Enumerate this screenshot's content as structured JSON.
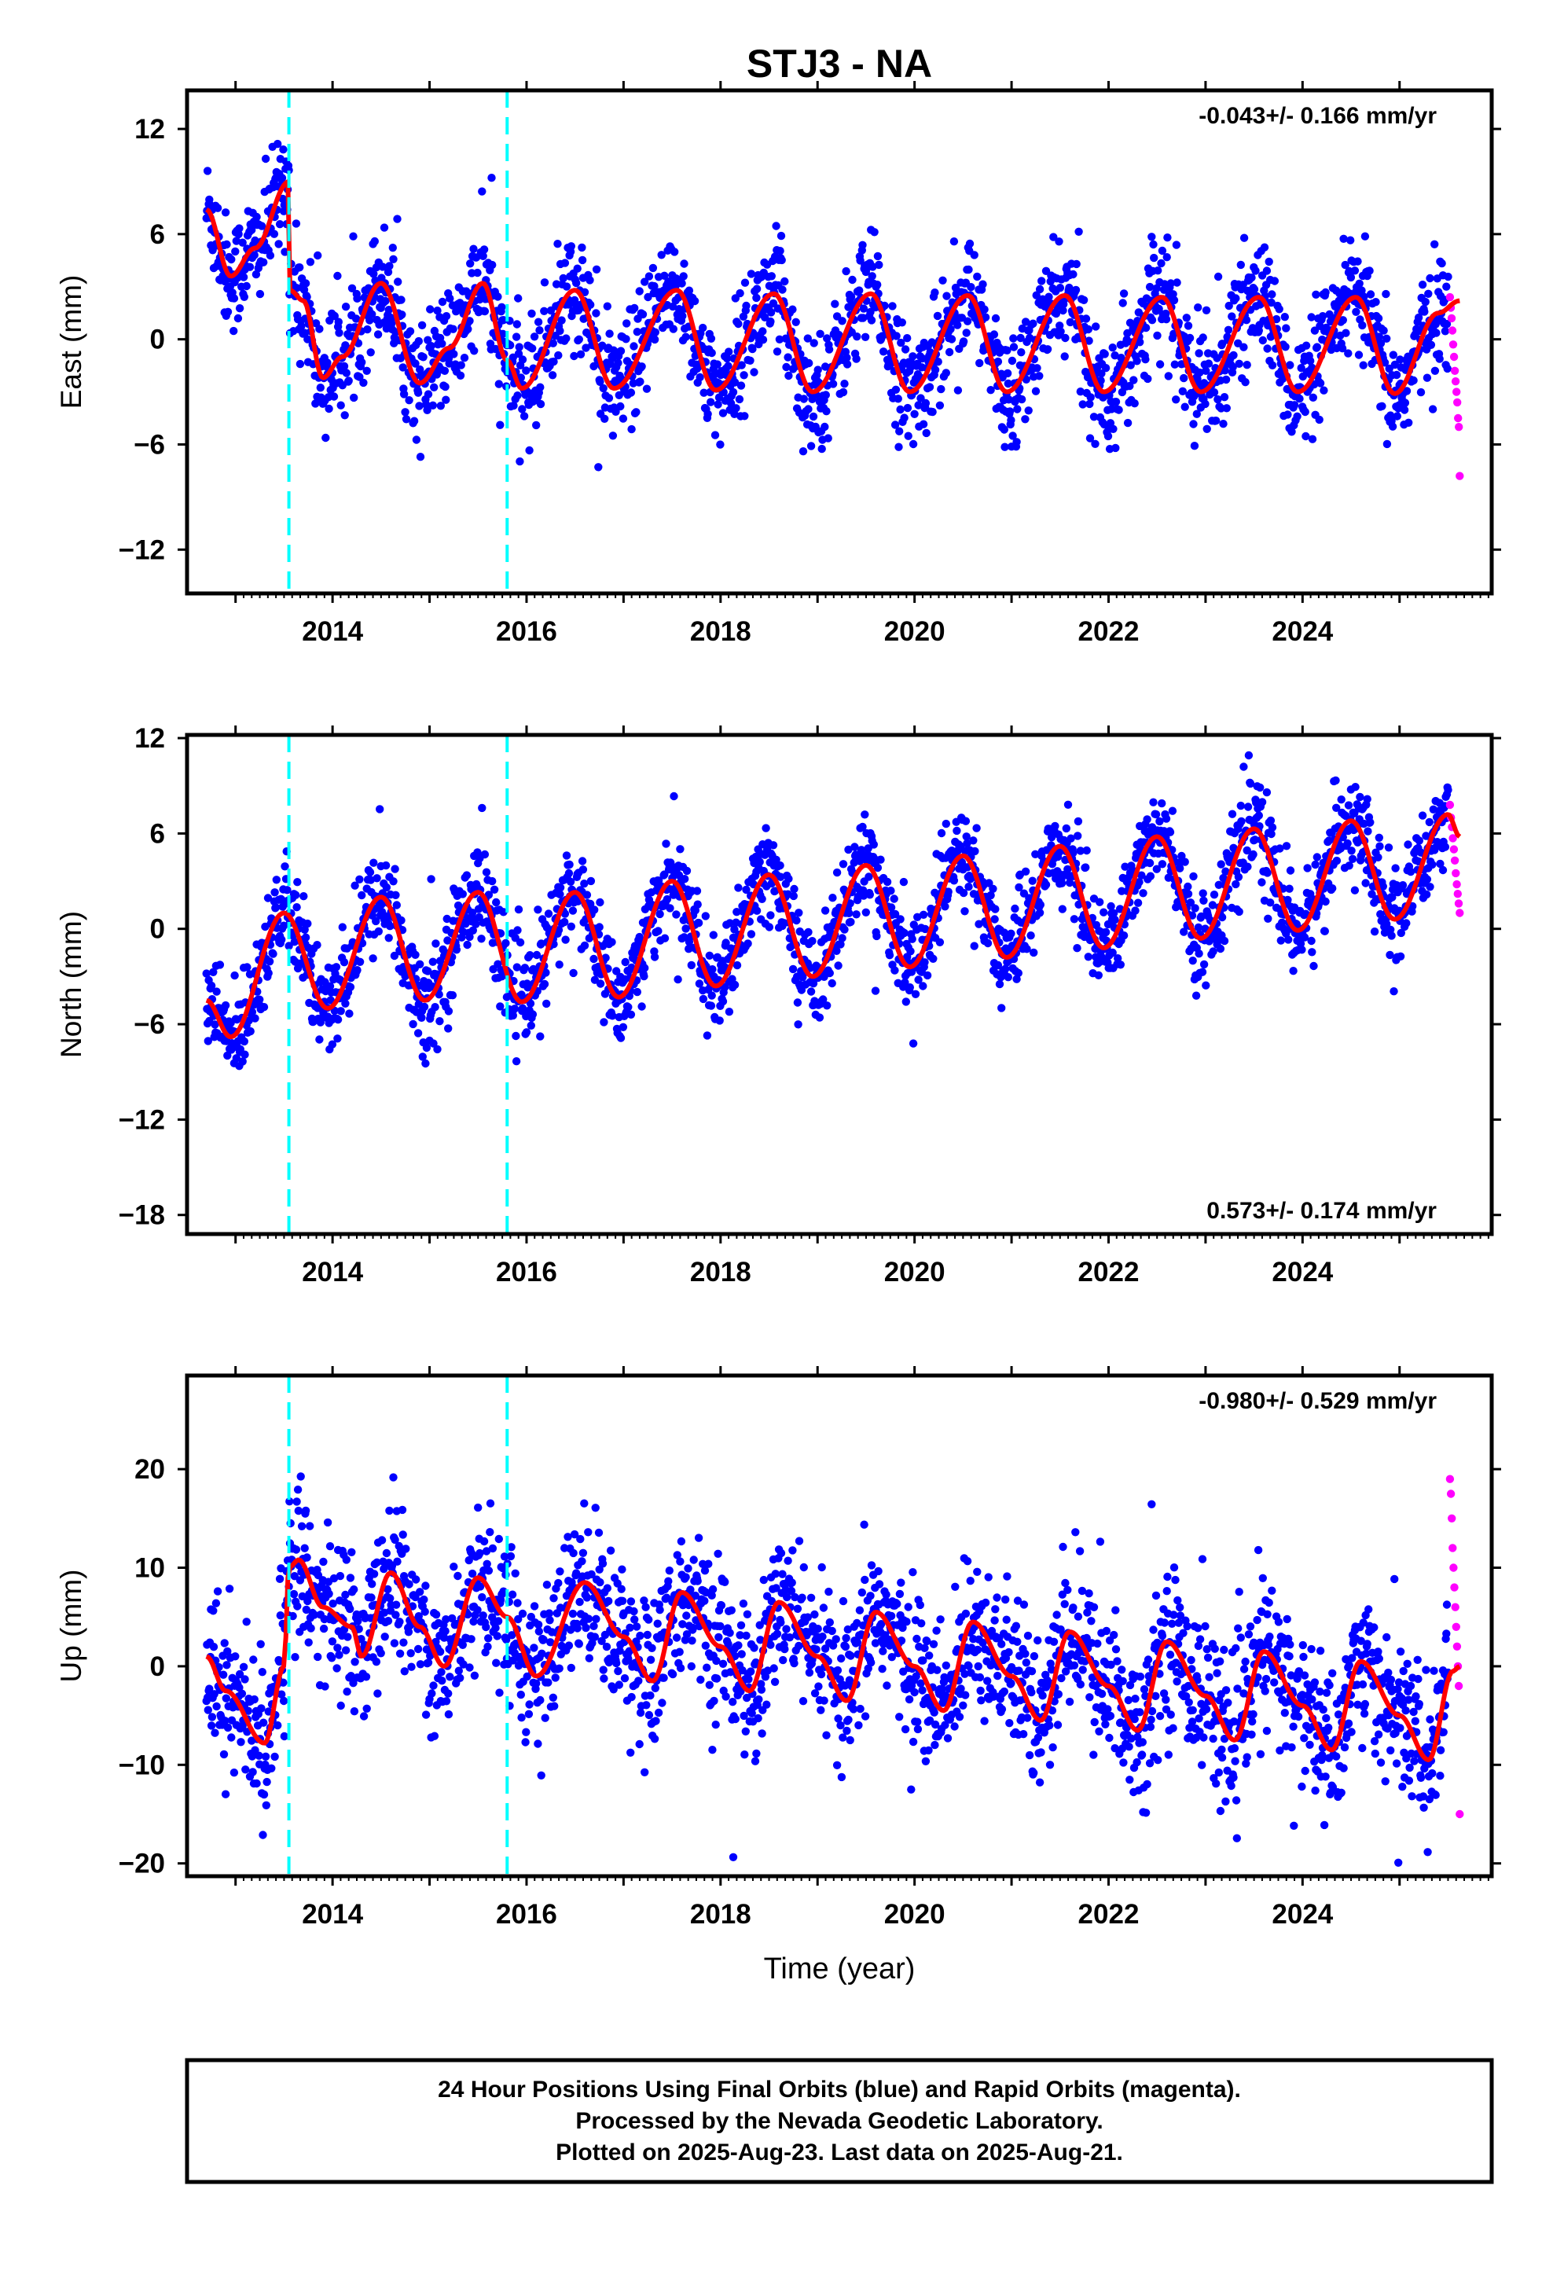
{
  "chart_title": "STJ3 - NA",
  "x_axis_label": "Time (year)",
  "footer": {
    "line1": "24 Hour Positions Using Final Orbits (blue) and Rapid Orbits (magenta).",
    "line2": "Processed by the Nevada Geodetic Laboratory.",
    "line3": "Plotted on 2025-Aug-23. Last data on 2025-Aug-21."
  },
  "colors": {
    "final_orbits": "#0000ff",
    "rapid_orbits": "#ff00ff",
    "model_fit": "#ff0000",
    "equipment_change": "#00ffff",
    "frame": "#000000"
  },
  "chart_data": [
    {
      "type": "scatter",
      "component": "east",
      "ylabel": "East (mm)",
      "xlim": [
        2012.5,
        2025.95
      ],
      "ylim": [
        -14.5,
        14.2
      ],
      "x_ticks": [
        2014,
        2016,
        2018,
        2020,
        2022,
        2024
      ],
      "y_ticks": [
        -12,
        -6,
        0,
        6,
        12
      ],
      "grid": false,
      "rate_text": "-0.043+/- 0.166 mm/yr",
      "rate_position": "top-right",
      "equipment_changes": [
        2013.55,
        2015.8
      ],
      "series": [
        {
          "name": "Final Orbits (blue)",
          "x_range": [
            2012.7,
            2025.5
          ],
          "marker": "circle",
          "color": "#0000ff"
        },
        {
          "name": "Rapid Orbits (magenta)",
          "x_range": [
            2025.52,
            2025.62
          ],
          "values": [
            2.4,
            1.8,
            1.2,
            0.5,
            -0.3,
            -1.0,
            -1.8,
            -2.4,
            -3.0,
            -3.6,
            -4.5,
            -5.0,
            -7.8
          ],
          "color": "#ff00ff"
        }
      ],
      "model_fit_keypoints": [
        [
          2012.7,
          7.4
        ],
        [
          2012.95,
          3.6
        ],
        [
          2013.2,
          5.2
        ],
        [
          2013.55,
          9.0
        ],
        [
          2013.56,
          2.8
        ],
        [
          2013.7,
          2.2
        ],
        [
          2013.9,
          -2.2
        ],
        [
          2014.1,
          -1.0
        ],
        [
          2014.5,
          3.2
        ],
        [
          2014.9,
          -2.5
        ],
        [
          2015.2,
          -0.5
        ],
        [
          2015.55,
          3.2
        ],
        [
          2015.8,
          -1.2
        ],
        [
          2015.95,
          -2.8
        ],
        [
          2016.5,
          2.8
        ],
        [
          2016.9,
          -2.8
        ],
        [
          2017.55,
          2.8
        ],
        [
          2017.95,
          -2.9
        ],
        [
          2018.55,
          2.6
        ],
        [
          2018.95,
          -3.0
        ],
        [
          2019.55,
          2.6
        ],
        [
          2019.95,
          -3.0
        ],
        [
          2020.55,
          2.5
        ],
        [
          2020.95,
          -3.0
        ],
        [
          2021.55,
          2.5
        ],
        [
          2021.95,
          -3.0
        ],
        [
          2022.55,
          2.4
        ],
        [
          2022.95,
          -3.0
        ],
        [
          2023.55,
          2.4
        ],
        [
          2023.95,
          -3.0
        ],
        [
          2024.55,
          2.4
        ],
        [
          2024.95,
          -3.1
        ],
        [
          2025.4,
          1.5
        ],
        [
          2025.62,
          2.2
        ]
      ]
    },
    {
      "type": "scatter",
      "component": "north",
      "ylabel": "North (mm)",
      "xlim": [
        2012.5,
        2025.95
      ],
      "ylim": [
        -19.2,
        12.2
      ],
      "x_ticks": [
        2014,
        2016,
        2018,
        2020,
        2022,
        2024
      ],
      "y_ticks": [
        -18,
        -12,
        -6,
        0,
        6,
        12
      ],
      "grid": false,
      "rate_text": "0.573+/- 0.174 mm/yr",
      "rate_position": "bottom-right",
      "equipment_changes": [
        2013.55,
        2015.8
      ],
      "series": [
        {
          "name": "Final Orbits (blue)",
          "x_range": [
            2012.7,
            2025.5
          ],
          "marker": "circle",
          "color": "#0000ff"
        },
        {
          "name": "Rapid Orbits (magenta)",
          "x_range": [
            2025.52,
            2025.62
          ],
          "values": [
            7.8,
            7.0,
            6.4,
            5.7,
            5.0,
            4.3,
            3.5,
            2.8,
            2.2,
            1.6,
            1.0
          ],
          "color": "#ff00ff"
        }
      ],
      "model_fit_keypoints": [
        [
          2012.7,
          -4.5
        ],
        [
          2012.95,
          -6.8
        ],
        [
          2013.5,
          1.0
        ],
        [
          2013.95,
          -5.0
        ],
        [
          2014.5,
          2.0
        ],
        [
          2014.95,
          -4.5
        ],
        [
          2015.5,
          2.3
        ],
        [
          2015.95,
          -4.6
        ],
        [
          2016.5,
          2.3
        ],
        [
          2016.95,
          -4.3
        ],
        [
          2017.5,
          3.0
        ],
        [
          2017.95,
          -3.6
        ],
        [
          2018.5,
          3.4
        ],
        [
          2018.95,
          -3.0
        ],
        [
          2019.5,
          4.0
        ],
        [
          2019.95,
          -2.4
        ],
        [
          2020.5,
          4.6
        ],
        [
          2020.95,
          -1.8
        ],
        [
          2021.5,
          5.2
        ],
        [
          2021.95,
          -1.2
        ],
        [
          2022.5,
          5.8
        ],
        [
          2022.95,
          -0.6
        ],
        [
          2023.5,
          6.3
        ],
        [
          2023.95,
          -0.1
        ],
        [
          2024.5,
          6.8
        ],
        [
          2024.95,
          0.6
        ],
        [
          2025.5,
          7.2
        ],
        [
          2025.62,
          5.8
        ]
      ]
    },
    {
      "type": "scatter",
      "component": "up",
      "ylabel": "Up (mm)",
      "xlim": [
        2012.5,
        2025.95
      ],
      "ylim": [
        -21.3,
        29.5
      ],
      "x_ticks": [
        2014,
        2016,
        2018,
        2020,
        2022,
        2024
      ],
      "y_ticks": [
        -20,
        -10,
        0,
        10,
        20
      ],
      "grid": false,
      "rate_text": "-0.980+/- 0.529 mm/yr",
      "rate_position": "top-right",
      "equipment_changes": [
        2013.55,
        2015.8
      ],
      "series": [
        {
          "name": "Final Orbits (blue)",
          "x_range": [
            2012.7,
            2025.5
          ],
          "marker": "circle",
          "color": "#0000ff"
        },
        {
          "name": "Rapid Orbits (magenta)",
          "x_range": [
            2025.52,
            2025.62
          ],
          "values": [
            19.0,
            17.5,
            15.0,
            12.0,
            10.0,
            8.0,
            6.0,
            4.0,
            2.0,
            0.0,
            -2.0,
            -15.0
          ],
          "color": "#ff00ff"
        }
      ],
      "model_fit_keypoints": [
        [
          2012.7,
          1.0
        ],
        [
          2012.9,
          -2.5
        ],
        [
          2013.3,
          -7.8
        ],
        [
          2013.5,
          0.0
        ],
        [
          2013.55,
          10.0
        ],
        [
          2013.65,
          10.8
        ],
        [
          2013.9,
          6.0
        ],
        [
          2014.2,
          4.0
        ],
        [
          2014.3,
          1.0
        ],
        [
          2014.6,
          9.5
        ],
        [
          2014.9,
          4.0
        ],
        [
          2015.15,
          0.0
        ],
        [
          2015.5,
          9.0
        ],
        [
          2015.8,
          5.0
        ],
        [
          2016.1,
          -1.0
        ],
        [
          2016.6,
          8.5
        ],
        [
          2017.0,
          3.0
        ],
        [
          2017.3,
          -1.5
        ],
        [
          2017.6,
          7.5
        ],
        [
          2018.0,
          2.0
        ],
        [
          2018.3,
          -2.5
        ],
        [
          2018.6,
          6.5
        ],
        [
          2019.0,
          1.0
        ],
        [
          2019.3,
          -3.5
        ],
        [
          2019.6,
          5.5
        ],
        [
          2020.0,
          0.0
        ],
        [
          2020.3,
          -4.5
        ],
        [
          2020.6,
          4.5
        ],
        [
          2021.0,
          -1.0
        ],
        [
          2021.3,
          -5.5
        ],
        [
          2021.6,
          3.5
        ],
        [
          2022.0,
          -2.0
        ],
        [
          2022.3,
          -6.5
        ],
        [
          2022.6,
          2.5
        ],
        [
          2023.0,
          -3.0
        ],
        [
          2023.3,
          -7.5
        ],
        [
          2023.6,
          1.5
        ],
        [
          2024.0,
          -4.0
        ],
        [
          2024.3,
          -8.5
        ],
        [
          2024.6,
          0.5
        ],
        [
          2025.0,
          -5.0
        ],
        [
          2025.3,
          -9.5
        ],
        [
          2025.55,
          -0.5
        ],
        [
          2025.62,
          0.0
        ]
      ]
    }
  ]
}
